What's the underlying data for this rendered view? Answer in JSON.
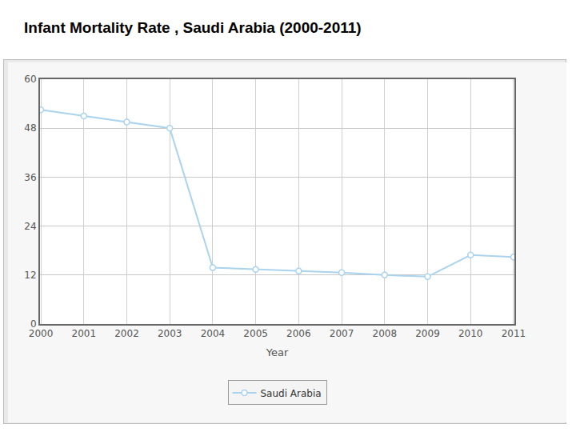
{
  "chart_data": {
    "type": "line",
    "title": "Infant Mortality Rate , Saudi Arabia (2000-2011)",
    "x_label": "Year",
    "categories": [
      "2000",
      "2001",
      "2002",
      "2003",
      "2004",
      "2005",
      "2006",
      "2007",
      "2008",
      "2009",
      "2010",
      "2011"
    ],
    "series": [
      {
        "name": "Saudi Arabia",
        "color": "#a9d3ee",
        "marker": "circle",
        "values": [
          52.5,
          51,
          49.5,
          48,
          13.8,
          13.4,
          13,
          12.6,
          12,
          11.6,
          16.9,
          16.4
        ]
      }
    ],
    "ylim": [
      0,
      60
    ],
    "yticks": [
      0,
      12,
      24,
      36,
      48,
      60
    ],
    "grid": true,
    "legend": "bottom"
  }
}
